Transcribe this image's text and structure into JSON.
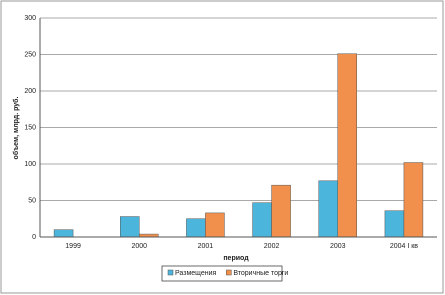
{
  "chart_data": {
    "type": "bar",
    "y_label": "объем, млрд. руб.",
    "x_label": "период",
    "categories": [
      "1999",
      "2000",
      "2001",
      "2002",
      "2003",
      "2004 I кв"
    ],
    "series": [
      {
        "name": "Размещения",
        "color": "#4bb5dc",
        "values": [
          10,
          28,
          25,
          47,
          77,
          36
        ]
      },
      {
        "name": "Вторичные торги",
        "color": "#f0904c",
        "values": [
          0,
          4,
          33,
          71,
          251,
          102
        ]
      }
    ],
    "ylim": [
      0,
      300
    ],
    "yticks": [
      0,
      50,
      100,
      150,
      200,
      250,
      300
    ],
    "grid": true,
    "legend": "bottom"
  }
}
